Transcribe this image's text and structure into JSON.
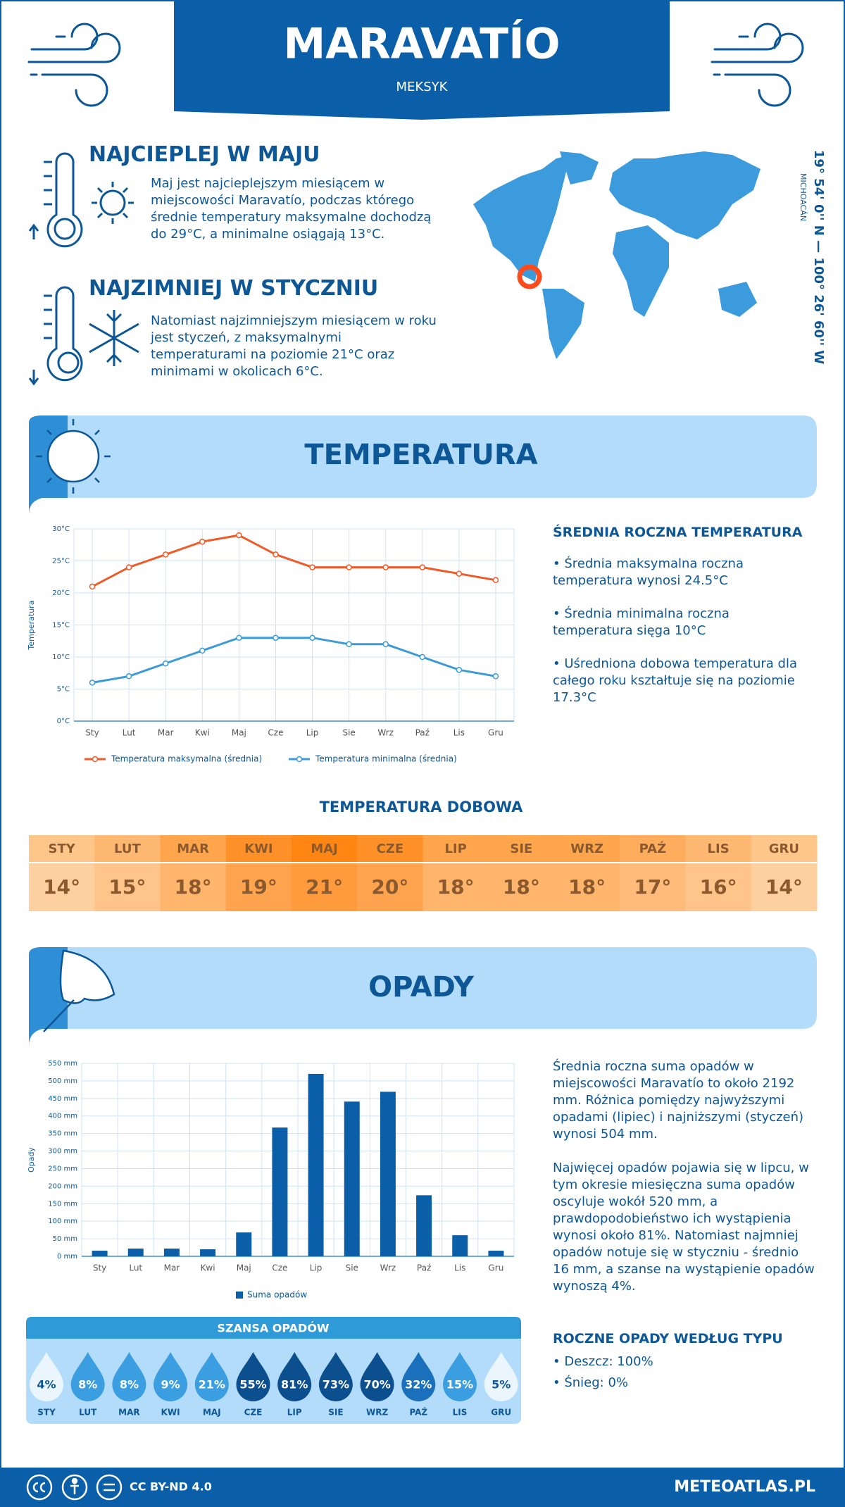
{
  "header": {
    "title": "MARAVATÍO",
    "subtitle": "MEKSYK"
  },
  "location": {
    "coords": "19° 54' 0'' N — 100° 26' 60'' W",
    "region": "MICHOACÁN"
  },
  "warmest": {
    "title": "NAJCIEPLEJ W MAJU",
    "text": "Maj jest najcieplejszym miesiącem w miejscowości Maravatío, podczas którego średnie temperatury maksymalne dochodzą do 29°C, a minimalne osiągają 13°C."
  },
  "coldest": {
    "title": "NAJZIMNIEJ W STYCZNIU",
    "text": "Natomiast najzimniejszym miesiącem w roku jest styczeń, z maksymalnymi temperaturami na poziomie 21°C oraz minimami w okolicach 6°C."
  },
  "temperature_section": {
    "title": "TEMPERATURA"
  },
  "annual_temperature": {
    "title": "ŚREDNIA ROCZNA TEMPERATURA",
    "items": [
      "• Średnia maksymalna roczna temperatura wynosi 24.5°C",
      "• Średnia minimalna roczna temperatura sięga 10°C",
      "• Uśredniona dobowa temperatura dla całego roku kształtuje się na poziomie 17.3°C"
    ]
  },
  "daily_temperature": {
    "title": "TEMPERATURA DOBOWA",
    "months": [
      "STY",
      "LUT",
      "MAR",
      "KWI",
      "MAJ",
      "CZE",
      "LIP",
      "SIE",
      "WRZ",
      "PAŹ",
      "LIS",
      "GRU"
    ],
    "values": [
      "14°",
      "15°",
      "18°",
      "19°",
      "21°",
      "20°",
      "18°",
      "18°",
      "18°",
      "17°",
      "16°",
      "14°"
    ],
    "colors": [
      "#ffc68a",
      "#ffb871",
      "#ffa54c",
      "#ff9128",
      "#ff8613",
      "#ff9128",
      "#ffa54c",
      "#ffa54c",
      "#ffa54c",
      "#ffad5c",
      "#ffb871",
      "#ffc68a"
    ]
  },
  "precipitation_section": {
    "title": "OPADY"
  },
  "precipitation_text": [
    "Średnia roczna suma opadów w miejscowości Maravatío to około 2192 mm. Różnica pomiędzy najwyższymi opadami (lipiec) i najniższymi (styczeń) wynosi 504 mm.",
    "Najwięcej opadów pojawia się w lipcu, w tym okresie miesięczna suma opadów oscyluje wokół 520 mm, a prawdopodobieństwo ich wystąpienia wynosi około 81%. Natomiast najmniej opadów notuje się w styczniu - średnio 16 mm, a szanse na wystąpienie opadów wynoszą 4%."
  ],
  "precipitation_chance": {
    "title": "SZANSA OPADÓW",
    "months": [
      "STY",
      "LUT",
      "MAR",
      "KWI",
      "MAJ",
      "CZE",
      "LIP",
      "SIE",
      "WRZ",
      "PAŹ",
      "LIS",
      "GRU"
    ],
    "values": [
      "4%",
      "8%",
      "8%",
      "9%",
      "21%",
      "55%",
      "81%",
      "73%",
      "70%",
      "32%",
      "15%",
      "5%"
    ],
    "colors": [
      "#eaf5fd",
      "#3a9ee0",
      "#3a9ee0",
      "#3a9ee0",
      "#3a9ee0",
      "#0b4f8f",
      "#0b4f8f",
      "#0b4f8f",
      "#0b4f8f",
      "#1a70bb",
      "#3a9ee0",
      "#eaf5fd"
    ],
    "label_colors": [
      "#0d5796",
      "#ffffff",
      "#ffffff",
      "#ffffff",
      "#ffffff",
      "#ffffff",
      "#ffffff",
      "#ffffff",
      "#ffffff",
      "#ffffff",
      "#ffffff",
      "#0d5796"
    ]
  },
  "precipitation_types": {
    "title": "ROCZNE OPADY WEDŁUG TYPU",
    "items": [
      "• Deszcz: 100%",
      "• Śnieg: 0%"
    ]
  },
  "footer": {
    "license": "CC BY-ND 4.0",
    "site": "METEOATLAS.PL"
  },
  "chart_data": [
    {
      "type": "line",
      "ylabel": "Temperatura",
      "categories": [
        "Sty",
        "Lut",
        "Mar",
        "Kwi",
        "Maj",
        "Cze",
        "Lip",
        "Sie",
        "Wrz",
        "Paź",
        "Lis",
        "Gru"
      ],
      "series": [
        {
          "name": "Temperatura maksymalna (średnia)",
          "color": "#f05a28",
          "values": [
            21,
            24,
            26,
            28,
            29,
            26,
            24,
            24,
            24,
            24,
            23,
            22
          ]
        },
        {
          "name": "Temperatura minimalna (średnia)",
          "color": "#3b9bd6",
          "values": [
            6,
            7,
            9,
            11,
            13,
            13,
            13,
            12,
            12,
            10,
            8,
            7
          ]
        }
      ],
      "ylim": [
        0,
        30
      ],
      "yticks": [
        {
          "value": 0,
          "label": "0°C"
        },
        {
          "value": 5,
          "label": "5°C"
        },
        {
          "value": 10,
          "label": "10°C"
        },
        {
          "value": 15,
          "label": "15°C"
        },
        {
          "value": 20,
          "label": "20°C"
        },
        {
          "value": 25,
          "label": "25°C"
        },
        {
          "value": 30,
          "label": "30°C"
        }
      ],
      "grid": true
    },
    {
      "type": "bar",
      "ylabel": "Opady",
      "categories": [
        "Sty",
        "Lut",
        "Mar",
        "Kwi",
        "Maj",
        "Cze",
        "Lip",
        "Sie",
        "Wrz",
        "Paź",
        "Lis",
        "Gru"
      ],
      "series": [
        {
          "name": "Suma opadów",
          "color": "#0b5ea8",
          "values": [
            16,
            22,
            22,
            20,
            68,
            367,
            520,
            441,
            469,
            174,
            60,
            16
          ]
        }
      ],
      "ylim": [
        0,
        550
      ],
      "yticks": [
        {
          "value": 0,
          "label": "0 mm"
        },
        {
          "value": 50,
          "label": "50 mm"
        },
        {
          "value": 100,
          "label": "100 mm"
        },
        {
          "value": 150,
          "label": "150 mm"
        },
        {
          "value": 200,
          "label": "200 mm"
        },
        {
          "value": 250,
          "label": "250 mm"
        },
        {
          "value": 300,
          "label": "300 mm"
        },
        {
          "value": 350,
          "label": "350 mm"
        },
        {
          "value": 400,
          "label": "400 mm"
        },
        {
          "value": 450,
          "label": "450 mm"
        },
        {
          "value": 500,
          "label": "500 mm"
        },
        {
          "value": 550,
          "label": "550 mm"
        }
      ],
      "grid": true
    }
  ]
}
